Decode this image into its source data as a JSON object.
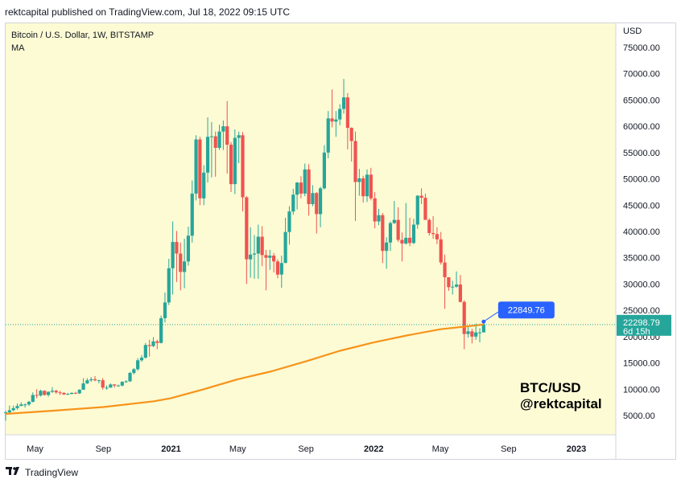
{
  "header": {
    "published": "rektcapital published on TradingView.com, Jul 18, 2022 09:15 UTC"
  },
  "legend": {
    "symbol": "Bitcoin / U.S. Dollar, 1W, BITSTAMP",
    "indicator": "MA"
  },
  "watermark": {
    "line1": "BTC/USD",
    "line2": "@rektcapital"
  },
  "footer": {
    "brand": "TradingView",
    "logo_icon": "tradingview-logo-icon"
  },
  "colors": {
    "background": "#fdfbd4",
    "up": "#26a69a",
    "down": "#ef5350",
    "ma": "#f7931a",
    "price_line": "#2962ff",
    "price_tag": "#26a69a"
  },
  "chart_data": {
    "type": "candlestick",
    "ylabel": "USD",
    "ylim": [
      0,
      78000
    ],
    "y_ticks": [
      5000,
      10000,
      15000,
      20000,
      25000,
      30000,
      35000,
      40000,
      45000,
      50000,
      55000,
      60000,
      65000,
      70000,
      75000
    ],
    "y_tick_labels": [
      "5000.00",
      "10000.00",
      "15000.00",
      "20000.00",
      "25000.00",
      "30000.00",
      "35000.00",
      "40000.00",
      "45000.00",
      "50000.00",
      "55000.00",
      "60000.00",
      "65000.00",
      "70000.00",
      "75000.00"
    ],
    "x_ticks": [
      {
        "label": "May",
        "date": "2020-05-01",
        "bold": false
      },
      {
        "label": "Sep",
        "date": "2020-09-01",
        "bold": false
      },
      {
        "label": "2021",
        "date": "2021-01-01",
        "bold": true
      },
      {
        "label": "May",
        "date": "2021-05-01",
        "bold": false
      },
      {
        "label": "Sep",
        "date": "2021-09-01",
        "bold": false
      },
      {
        "label": "2022",
        "date": "2022-01-01",
        "bold": true
      },
      {
        "label": "May",
        "date": "2022-05-01",
        "bold": false
      },
      {
        "label": "Sep",
        "date": "2022-09-01",
        "bold": false
      },
      {
        "label": "2023",
        "date": "2023-01-01",
        "bold": true
      }
    ],
    "xlim": [
      "2020-03-09",
      "2023-03-13"
    ],
    "price_tag": {
      "value": "22298.79",
      "countdown": "6d 15h",
      "price": 22298.79
    },
    "callout": {
      "label": "22849.76",
      "price": 22849.76,
      "date": "2022-07-18"
    },
    "ma_series": {
      "name": "MA",
      "points": [
        [
          "2020-03-09",
          5300
        ],
        [
          "2020-06-01",
          5900
        ],
        [
          "2020-09-01",
          6600
        ],
        [
          "2020-12-01",
          7700
        ],
        [
          "2021-01-01",
          8300
        ],
        [
          "2021-03-01",
          10000
        ],
        [
          "2021-05-01",
          11900
        ],
        [
          "2021-07-01",
          13400
        ],
        [
          "2021-09-01",
          15300
        ],
        [
          "2021-11-01",
          17300
        ],
        [
          "2022-01-01",
          18900
        ],
        [
          "2022-03-01",
          20200
        ],
        [
          "2022-05-01",
          21400
        ],
        [
          "2022-07-18",
          22300
        ]
      ]
    },
    "candles": [
      [
        "2020-03-09",
        5500,
        5900,
        4000,
        5600
      ],
      [
        "2020-03-16",
        5600,
        6900,
        5200,
        6000
      ],
      [
        "2020-03-23",
        6000,
        6900,
        5800,
        6400
      ],
      [
        "2020-03-30",
        6400,
        7300,
        6100,
        6800
      ],
      [
        "2020-04-06",
        6800,
        7500,
        6800,
        7100
      ],
      [
        "2020-04-13",
        7100,
        7300,
        6500,
        7100
      ],
      [
        "2020-04-20",
        7100,
        7800,
        6800,
        7600
      ],
      [
        "2020-04-27",
        7600,
        9400,
        7500,
        8900
      ],
      [
        "2020-05-04",
        8900,
        10000,
        8300,
        8800
      ],
      [
        "2020-05-11",
        8800,
        9900,
        8600,
        9700
      ],
      [
        "2020-05-18",
        9700,
        9800,
        8800,
        8900
      ],
      [
        "2020-05-25",
        8900,
        9600,
        8600,
        9500
      ],
      [
        "2020-06-01",
        9500,
        10400,
        9300,
        9700
      ],
      [
        "2020-06-08",
        9700,
        9900,
        9100,
        9400
      ],
      [
        "2020-06-15",
        9400,
        9700,
        8900,
        9300
      ],
      [
        "2020-06-22",
        9300,
        9400,
        8900,
        9000
      ],
      [
        "2020-06-29",
        9000,
        9300,
        8900,
        9100
      ],
      [
        "2020-07-06",
        9100,
        9400,
        9000,
        9300
      ],
      [
        "2020-07-13",
        9300,
        9500,
        9100,
        9200
      ],
      [
        "2020-07-20",
        9200,
        10000,
        9100,
        9900
      ],
      [
        "2020-07-27",
        9900,
        12100,
        9900,
        11100
      ],
      [
        "2020-08-03",
        11100,
        12100,
        11000,
        11700
      ],
      [
        "2020-08-10",
        11700,
        12300,
        11400,
        11900
      ],
      [
        "2020-08-17",
        11900,
        12500,
        11500,
        11700
      ],
      [
        "2020-08-24",
        11700,
        11800,
        11100,
        11700
      ],
      [
        "2020-08-31",
        11700,
        12100,
        9900,
        10300
      ],
      [
        "2020-09-07",
        10300,
        10700,
        9900,
        10300
      ],
      [
        "2020-09-14",
        10300,
        11100,
        10300,
        10900
      ],
      [
        "2020-09-21",
        10900,
        11000,
        10300,
        10700
      ],
      [
        "2020-09-28",
        10700,
        10900,
        10500,
        10700
      ],
      [
        "2020-10-05",
        10700,
        11500,
        10500,
        11400
      ],
      [
        "2020-10-12",
        11400,
        11700,
        11200,
        11500
      ],
      [
        "2020-10-19",
        11500,
        13300,
        11400,
        13100
      ],
      [
        "2020-10-26",
        13100,
        14000,
        12800,
        13800
      ],
      [
        "2020-11-02",
        13800,
        15900,
        13500,
        15500
      ],
      [
        "2020-11-09",
        15500,
        16500,
        15200,
        16000
      ],
      [
        "2020-11-16",
        16000,
        18800,
        15800,
        18400
      ],
      [
        "2020-11-23",
        18400,
        19400,
        16200,
        18200
      ],
      [
        "2020-11-30",
        18200,
        19900,
        18000,
        19100
      ],
      [
        "2020-12-07",
        19100,
        19400,
        17600,
        18800
      ],
      [
        "2020-12-14",
        18800,
        24000,
        18700,
        23500
      ],
      [
        "2020-12-21",
        23500,
        28400,
        22700,
        26500
      ],
      [
        "2020-12-28",
        26500,
        34800,
        26000,
        33000
      ],
      [
        "2021-01-04",
        33000,
        41900,
        28000,
        38000
      ],
      [
        "2021-01-11",
        38000,
        40100,
        30400,
        35800
      ],
      [
        "2021-01-18",
        35800,
        37900,
        28800,
        32300
      ],
      [
        "2021-01-25",
        32300,
        38600,
        29200,
        34300
      ],
      [
        "2021-02-01",
        34300,
        40900,
        33500,
        39200
      ],
      [
        "2021-02-08",
        39200,
        49700,
        37900,
        47200
      ],
      [
        "2021-02-15",
        47200,
        58300,
        45900,
        57500
      ],
      [
        "2021-02-22",
        57500,
        58000,
        45000,
        46300
      ],
      [
        "2021-03-01",
        46300,
        52600,
        45000,
        51200
      ],
      [
        "2021-03-08",
        51200,
        61700,
        49300,
        58000
      ],
      [
        "2021-03-15",
        58000,
        60800,
        50300,
        58100
      ],
      [
        "2021-03-22",
        58100,
        59000,
        50400,
        55900
      ],
      [
        "2021-03-29",
        55900,
        60300,
        55500,
        59000
      ],
      [
        "2021-04-05",
        59000,
        61100,
        55500,
        60000
      ],
      [
        "2021-04-12",
        60000,
        64800,
        51000,
        56500
      ],
      [
        "2021-04-19",
        56500,
        57000,
        47500,
        49000
      ],
      [
        "2021-04-26",
        49000,
        59400,
        47100,
        57800
      ],
      [
        "2021-05-03",
        57800,
        59000,
        53000,
        58300
      ],
      [
        "2021-05-10",
        58300,
        58900,
        43800,
        46500
      ],
      [
        "2021-05-17",
        46500,
        46700,
        30000,
        34700
      ],
      [
        "2021-05-24",
        34700,
        40800,
        31200,
        35600
      ],
      [
        "2021-05-31",
        35600,
        39300,
        31000,
        35800
      ],
      [
        "2021-06-07",
        35800,
        41300,
        31000,
        39000
      ],
      [
        "2021-06-14",
        39000,
        41000,
        33400,
        35500
      ],
      [
        "2021-06-21",
        35500,
        36500,
        28800,
        35000
      ],
      [
        "2021-06-28",
        35000,
        36500,
        32700,
        35400
      ],
      [
        "2021-07-05",
        35400,
        35900,
        32200,
        34300
      ],
      [
        "2021-07-12",
        34300,
        34700,
        31100,
        31800
      ],
      [
        "2021-07-19",
        31800,
        35400,
        29300,
        34000
      ],
      [
        "2021-07-26",
        34000,
        42600,
        34000,
        39900
      ],
      [
        "2021-08-02",
        39900,
        44800,
        37500,
        43800
      ],
      [
        "2021-08-09",
        43800,
        48100,
        43200,
        47000
      ],
      [
        "2021-08-16",
        47000,
        49400,
        44200,
        49300
      ],
      [
        "2021-08-23",
        49300,
        50500,
        46300,
        47200
      ],
      [
        "2021-08-30",
        47200,
        52900,
        46700,
        51800
      ],
      [
        "2021-09-06",
        51800,
        52800,
        43000,
        45200
      ],
      [
        "2021-09-13",
        45200,
        48800,
        44800,
        47300
      ],
      [
        "2021-09-20",
        47300,
        47500,
        39600,
        43300
      ],
      [
        "2021-09-27",
        43300,
        48500,
        40800,
        48200
      ],
      [
        "2021-10-04",
        48200,
        56400,
        48000,
        55000
      ],
      [
        "2021-10-11",
        55000,
        62900,
        53900,
        61500
      ],
      [
        "2021-10-18",
        61500,
        67000,
        59800,
        60900
      ],
      [
        "2021-10-25",
        60900,
        62900,
        58000,
        61300
      ],
      [
        "2021-11-01",
        61300,
        64200,
        60200,
        63300
      ],
      [
        "2021-11-08",
        63300,
        69000,
        62400,
        65500
      ],
      [
        "2021-11-15",
        65500,
        66300,
        55600,
        59700
      ],
      [
        "2021-11-22",
        59700,
        59800,
        53300,
        57200
      ],
      [
        "2021-11-29",
        57200,
        59000,
        42000,
        49400
      ],
      [
        "2021-12-06",
        49400,
        51900,
        46800,
        50100
      ],
      [
        "2021-12-13",
        50100,
        50600,
        45500,
        46700
      ],
      [
        "2021-12-20",
        46700,
        51800,
        45600,
        50800
      ],
      [
        "2021-12-27",
        50800,
        52100,
        45900,
        46300
      ],
      [
        "2022-01-03",
        46300,
        47500,
        40600,
        41900
      ],
      [
        "2022-01-10",
        41900,
        44300,
        41200,
        43100
      ],
      [
        "2022-01-17",
        43100,
        43500,
        34000,
        36300
      ],
      [
        "2022-01-24",
        36300,
        38900,
        32900,
        37900
      ],
      [
        "2022-01-31",
        37900,
        41900,
        36300,
        41600
      ],
      [
        "2022-02-07",
        41600,
        45800,
        41400,
        42200
      ],
      [
        "2022-02-14",
        42200,
        44600,
        38000,
        38400
      ],
      [
        "2022-02-21",
        38400,
        39800,
        34300,
        37700
      ],
      [
        "2022-02-28",
        37700,
        45400,
        37500,
        38800
      ],
      [
        "2022-03-07",
        38800,
        42600,
        37200,
        37800
      ],
      [
        "2022-03-14",
        37800,
        42400,
        37600,
        41300
      ],
      [
        "2022-03-21",
        41300,
        46900,
        40500,
        46800
      ],
      [
        "2022-03-28",
        46800,
        48200,
        45200,
        46400
      ],
      [
        "2022-04-04",
        46400,
        47200,
        42800,
        42200
      ],
      [
        "2022-04-11",
        42200,
        42500,
        39200,
        39700
      ],
      [
        "2022-04-18",
        39700,
        42900,
        38600,
        39500
      ],
      [
        "2022-04-25",
        39500,
        40800,
        37600,
        38500
      ],
      [
        "2022-05-02",
        38500,
        39900,
        33700,
        34100
      ],
      [
        "2022-05-09",
        34100,
        35600,
        25300,
        31300
      ],
      [
        "2022-05-16",
        31300,
        31000,
        28700,
        29400
      ],
      [
        "2022-05-23",
        29400,
        30600,
        28000,
        29500
      ],
      [
        "2022-05-30",
        29500,
        32400,
        29300,
        29900
      ],
      [
        "2022-06-06",
        29900,
        31700,
        26500,
        26600
      ],
      [
        "2022-06-13",
        26600,
        26900,
        17600,
        20500
      ],
      [
        "2022-06-20",
        20500,
        21800,
        19800,
        21000
      ],
      [
        "2022-06-27",
        21000,
        21500,
        18700,
        20000
      ],
      [
        "2022-07-04",
        20000,
        22500,
        19400,
        20800
      ],
      [
        "2022-07-11",
        20800,
        21600,
        18900,
        20800
      ],
      [
        "2022-07-18",
        20800,
        22900,
        20800,
        22300
      ]
    ]
  }
}
